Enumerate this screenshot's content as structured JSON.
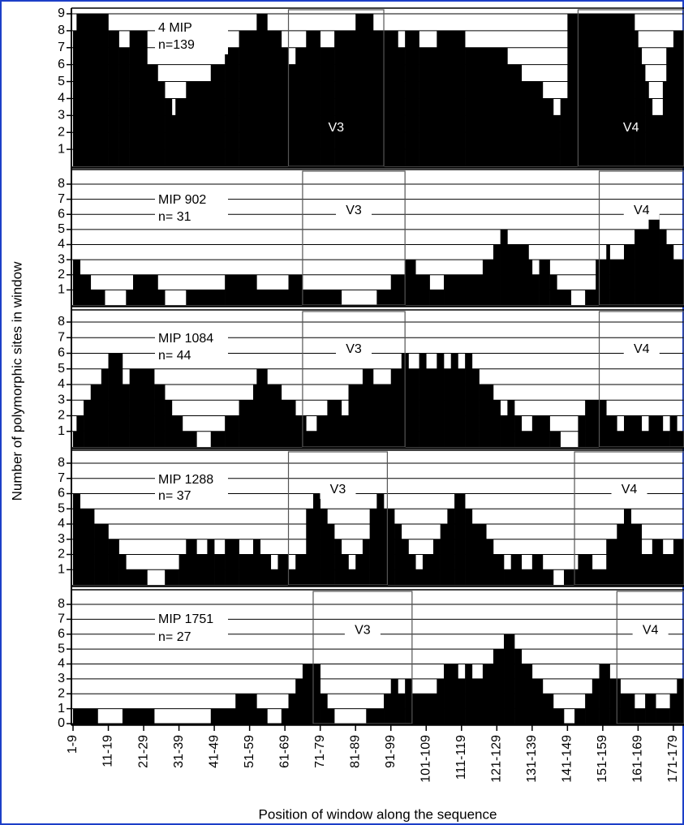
{
  "chart_data": [
    {
      "type": "step-area",
      "name": "4 MIP",
      "n_label": "n=139",
      "ylabel": "Number of polymorphic sites in window",
      "xlim": [
        1,
        174
      ],
      "ylim": [
        0,
        9
      ],
      "yticks": [
        1,
        2,
        3,
        4,
        5,
        6,
        7,
        8,
        9
      ],
      "color": "#000000",
      "x": [
        1,
        2,
        11,
        14,
        17,
        22,
        25,
        27,
        29,
        30,
        33,
        40,
        44,
        48,
        53,
        56,
        60,
        62,
        64,
        67,
        71,
        75,
        81,
        86,
        93,
        95,
        99,
        104,
        112,
        124,
        128,
        134,
        137,
        139,
        141,
        160,
        161,
        162,
        163,
        164,
        165,
        168,
        169,
        171
      ],
      "values": [
        8,
        9,
        8,
        7,
        8,
        6,
        5,
        4,
        3,
        4,
        5,
        6,
        7,
        8,
        9,
        8,
        7,
        6,
        7,
        8,
        7,
        8,
        9,
        8,
        7,
        8,
        7,
        8,
        7,
        6,
        5,
        4,
        3,
        4,
        9,
        8,
        7,
        6,
        5,
        4,
        3,
        5,
        7,
        8
      ],
      "regions": [
        {
          "label": "V3",
          "start": 62,
          "end": 89
        },
        {
          "label": "V4",
          "start": 144,
          "end": 174
        }
      ]
    },
    {
      "type": "step-area",
      "name": "MIP 902",
      "n_label": "n= 31",
      "xlim": [
        1,
        174
      ],
      "ylim": [
        0,
        8
      ],
      "yticks": [
        1,
        2,
        3,
        4,
        5,
        6,
        7,
        8
      ],
      "color": "#000000",
      "x": [
        1,
        3,
        6,
        10,
        16,
        18,
        25,
        27,
        33,
        44,
        53,
        62,
        66,
        77,
        87,
        91,
        95,
        98,
        102,
        106,
        117,
        120,
        122,
        124,
        130,
        131,
        133,
        136,
        138,
        142,
        146,
        149,
        152,
        153,
        157,
        160,
        164,
        167,
        169,
        171
      ],
      "values": [
        3,
        2,
        1,
        0,
        1,
        2,
        1,
        0,
        1,
        2,
        1,
        2,
        1,
        0,
        1,
        2,
        3,
        2,
        1,
        2,
        3,
        4,
        5,
        4,
        3,
        2,
        3,
        2,
        1,
        0,
        1,
        3,
        4,
        3,
        4,
        5,
        6,
        5,
        4,
        3
      ],
      "regions": [
        {
          "label": "V3",
          "start": 66,
          "end": 95
        },
        {
          "label": "V4",
          "start": 150,
          "end": 174
        }
      ]
    },
    {
      "type": "step-area",
      "name": "MIP 1084",
      "n_label": "n= 44",
      "xlim": [
        1,
        174
      ],
      "ylim": [
        0,
        8
      ],
      "yticks": [
        1,
        2,
        3,
        4,
        5,
        6,
        7,
        8
      ],
      "color": "#000000",
      "x": [
        1,
        2,
        4,
        6,
        9,
        11,
        15,
        17,
        24,
        27,
        29,
        32,
        36,
        40,
        44,
        48,
        52,
        53,
        56,
        60,
        64,
        67,
        70,
        73,
        77,
        79,
        83,
        86,
        91,
        94,
        96,
        99,
        101,
        104,
        106,
        108,
        110,
        112,
        114,
        116,
        120,
        122,
        124,
        126,
        128,
        131,
        136,
        139,
        144,
        146,
        152,
        155,
        157,
        162,
        164,
        168,
        170,
        172
      ],
      "values": [
        1,
        2,
        3,
        4,
        5,
        6,
        4,
        5,
        4,
        3,
        2,
        1,
        0,
        1,
        2,
        3,
        4,
        5,
        4,
        3,
        2,
        1,
        2,
        3,
        2,
        4,
        5,
        4,
        5,
        6,
        5,
        6,
        5,
        6,
        5,
        6,
        5,
        6,
        5,
        4,
        3,
        2,
        3,
        2,
        1,
        2,
        1,
        0,
        2,
        3,
        2,
        1,
        2,
        1,
        2,
        1,
        2,
        1
      ],
      "regions": [
        {
          "label": "V3",
          "start": 66,
          "end": 95
        },
        {
          "label": "V4",
          "start": 150,
          "end": 174
        }
      ]
    },
    {
      "type": "step-area",
      "name": "MIP 1288",
      "n_label": "n= 37",
      "xlim": [
        1,
        174
      ],
      "ylim": [
        0,
        8
      ],
      "yticks": [
        1,
        2,
        3,
        4,
        5,
        6,
        7,
        8
      ],
      "color": "#000000",
      "x": [
        1,
        3,
        7,
        11,
        14,
        16,
        22,
        27,
        31,
        33,
        36,
        39,
        41,
        44,
        48,
        52,
        54,
        57,
        59,
        62,
        64,
        67,
        69,
        71,
        73,
        75,
        77,
        79,
        81,
        83,
        85,
        87,
        89,
        92,
        94,
        96,
        98,
        100,
        103,
        105,
        107,
        109,
        112,
        114,
        118,
        120,
        123,
        125,
        128,
        131,
        134,
        137,
        140,
        144,
        148,
        152,
        155,
        157,
        159,
        162,
        165,
        168,
        171
      ],
      "values": [
        6,
        5,
        4,
        3,
        2,
        1,
        0,
        1,
        2,
        3,
        2,
        3,
        2,
        3,
        2,
        3,
        2,
        1,
        2,
        1,
        2,
        5,
        6,
        5,
        4,
        3,
        2,
        1,
        2,
        3,
        5,
        6,
        5,
        4,
        3,
        2,
        1,
        2,
        3,
        4,
        5,
        6,
        5,
        4,
        3,
        2,
        1,
        2,
        1,
        2,
        1,
        0,
        1,
        2,
        1,
        3,
        4,
        5,
        4,
        2,
        3,
        2,
        3
      ],
      "regions": [
        {
          "label": "V3",
          "start": 62,
          "end": 90
        },
        {
          "label": "V4",
          "start": 143,
          "end": 174
        }
      ]
    },
    {
      "type": "step-area",
      "name": "MIP 1751",
      "n_label": "n= 27",
      "xlabel": "Position of window along the sequence",
      "xlim": [
        1,
        174
      ],
      "ylim": [
        0,
        8
      ],
      "yticks": [
        0,
        1,
        2,
        3,
        4,
        5,
        6,
        7,
        8
      ],
      "color": "#000000",
      "xticks": [
        {
          "value": 1,
          "label": "1-9"
        },
        {
          "value": 11,
          "label": "11-19"
        },
        {
          "value": 21,
          "label": "21-29"
        },
        {
          "value": 31,
          "label": "31-39"
        },
        {
          "value": 41,
          "label": "41-49"
        },
        {
          "value": 51,
          "label": "51-59"
        },
        {
          "value": 61,
          "label": "61-69"
        },
        {
          "value": 71,
          "label": "71-79"
        },
        {
          "value": 81,
          "label": "81-89"
        },
        {
          "value": 91,
          "label": "91-99"
        },
        {
          "value": 101,
          "label": "101-109"
        },
        {
          "value": 111,
          "label": "111-119"
        },
        {
          "value": 121,
          "label": "121-129"
        },
        {
          "value": 131,
          "label": "131-139"
        },
        {
          "value": 141,
          "label": "141-149"
        },
        {
          "value": 151,
          "label": "151-159"
        },
        {
          "value": 161,
          "label": "161-169"
        },
        {
          "value": 171,
          "label": "171-179"
        }
      ],
      "x": [
        1,
        8,
        15,
        24,
        40,
        47,
        53,
        56,
        60,
        62,
        64,
        66,
        71,
        73,
        75,
        84,
        89,
        91,
        93,
        95,
        97,
        104,
        106,
        110,
        112,
        114,
        117,
        120,
        123,
        126,
        128,
        131,
        134,
        137,
        140,
        143,
        146,
        148,
        150,
        153,
        156,
        160,
        163,
        166,
        170,
        172
      ],
      "values": [
        1,
        0,
        1,
        0,
        1,
        2,
        1,
        0,
        1,
        2,
        3,
        4,
        2,
        1,
        0,
        1,
        2,
        3,
        2,
        3,
        2,
        3,
        4,
        3,
        4,
        3,
        4,
        5,
        6,
        5,
        4,
        3,
        2,
        1,
        0,
        1,
        2,
        3,
        4,
        3,
        2,
        1,
        2,
        1,
        2,
        3
      ],
      "regions": [
        {
          "label": "V3",
          "start": 69,
          "end": 97
        },
        {
          "label": "V4",
          "start": 155,
          "end": 174
        }
      ]
    }
  ]
}
